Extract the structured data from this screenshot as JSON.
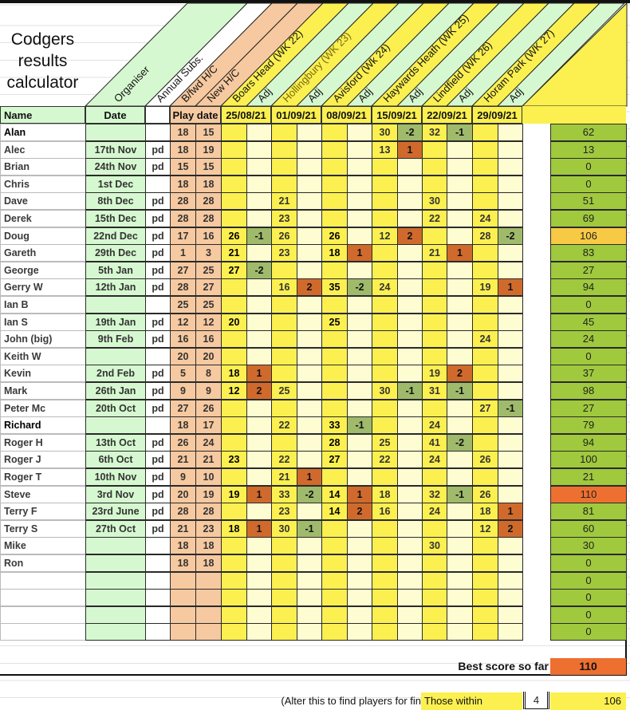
{
  "title": "Codgers results calculator",
  "diagonal_headers": {
    "organiser": "Organiser",
    "annual_subs": "Annual Subs.",
    "bfwd_hc": "B/fwd H/C",
    "new_hc": "New H/C",
    "venues": [
      "Boars Head (WK 22)",
      "Hollingbury (WK 23)",
      "Avisford (Wk 24)",
      "Haywards Heath (WK 25)",
      "Lindfield (WK 26)",
      "Horam Park (WK 27)"
    ],
    "adj": "Adj"
  },
  "columns": {
    "name": "Name",
    "date": "Date",
    "play_date": "Play date",
    "dates": [
      "25/08/21",
      "01/09/21",
      "08/09/21",
      "15/09/21",
      "22/09/21",
      "29/09/21"
    ]
  },
  "colors": {
    "score": "#fbf050",
    "adj_positive": "#d06a2c",
    "adj_negative": "#9fba6b",
    "total": "#a0c93e",
    "best": "#ee7030",
    "near_best": "#f8c945"
  },
  "rows": [
    {
      "name": "Alan",
      "date": "",
      "paid": "",
      "bfwd": "18",
      "new_hc": "15",
      "scores": [
        "",
        "",
        "",
        "",
        "",
        "",
        "30",
        "-2",
        "32",
        "-1",
        "",
        ""
      ],
      "total": "62",
      "strong": true
    },
    {
      "name": "Alec",
      "date": "17th Nov",
      "paid": "pd",
      "bfwd": "18",
      "new_hc": "19",
      "scores": [
        "",
        "",
        "",
        "",
        "",
        "",
        "13",
        "1",
        "",
        "",
        "",
        ""
      ],
      "total": "13"
    },
    {
      "name": "Brian",
      "date": "24th Nov",
      "paid": "pd",
      "bfwd": "15",
      "new_hc": "15",
      "scores": [
        "",
        "",
        "",
        "",
        "",
        "",
        "",
        "",
        "",
        "",
        "",
        ""
      ],
      "total": "0"
    },
    {
      "name": "Chris",
      "date": "1st Dec",
      "paid": "",
      "bfwd": "18",
      "new_hc": "18",
      "scores": [
        "",
        "",
        "",
        "",
        "",
        "",
        "",
        "",
        "",
        "",
        "",
        ""
      ],
      "total": "0"
    },
    {
      "name": "Dave",
      "date": "8th Dec",
      "paid": "pd",
      "bfwd": "28",
      "new_hc": "28",
      "scores": [
        "",
        "",
        "21",
        "",
        "",
        "",
        "",
        "",
        "30",
        "",
        "",
        ""
      ],
      "total": "51"
    },
    {
      "name": "Derek",
      "date": "15th Dec",
      "paid": "pd",
      "bfwd": "28",
      "new_hc": "28",
      "scores": [
        "",
        "",
        "23",
        "",
        "",
        "",
        "",
        "",
        "22",
        "",
        "24",
        ""
      ],
      "total": "69"
    },
    {
      "name": "Doug",
      "date": "22nd Dec",
      "paid": "pd",
      "bfwd": "17",
      "new_hc": "16",
      "scores": [
        "26",
        "-1",
        "26",
        "",
        "26",
        "",
        "12",
        "2",
        "",
        "",
        "28",
        "-2"
      ],
      "total": "106"
    },
    {
      "name": "Gareth",
      "date": "29th Dec",
      "paid": "pd",
      "bfwd": "1",
      "new_hc": "3",
      "scores": [
        "21",
        "",
        "23",
        "",
        "18",
        "1",
        "",
        "",
        "21",
        "1",
        "",
        ""
      ],
      "total": "83"
    },
    {
      "name": "George",
      "date": "5th Jan",
      "paid": "pd",
      "bfwd": "27",
      "new_hc": "25",
      "scores": [
        "27",
        "-2",
        "",
        "",
        "",
        "",
        "",
        "",
        "",
        "",
        "",
        ""
      ],
      "total": "27"
    },
    {
      "name": "Gerry W",
      "date": "12th Jan",
      "paid": "pd",
      "bfwd": "28",
      "new_hc": "27",
      "scores": [
        "",
        "",
        "16",
        "2",
        "35",
        "-2",
        "24",
        "",
        "",
        "",
        "19",
        "1"
      ],
      "total": "94"
    },
    {
      "name": "Ian B",
      "date": "",
      "paid": "",
      "bfwd": "25",
      "new_hc": "25",
      "scores": [
        "",
        "",
        "",
        "",
        "",
        "",
        "",
        "",
        "",
        "",
        "",
        ""
      ],
      "total": "0"
    },
    {
      "name": "Ian S",
      "date": "19th Jan",
      "paid": "pd",
      "bfwd": "12",
      "new_hc": "12",
      "scores": [
        "20",
        "",
        "",
        "",
        "25",
        "",
        "",
        "",
        "",
        "",
        "",
        ""
      ],
      "total": "45"
    },
    {
      "name": "John (big)",
      "date": "9th Feb",
      "paid": "pd",
      "bfwd": "16",
      "new_hc": "16",
      "scores": [
        "",
        "",
        "",
        "",
        "",
        "",
        "",
        "",
        "",
        "",
        "24",
        ""
      ],
      "total": "24"
    },
    {
      "name": "Keith W",
      "date": "",
      "paid": "",
      "bfwd": "20",
      "new_hc": "20",
      "scores": [
        "",
        "",
        "",
        "",
        "",
        "",
        "",
        "",
        "",
        "",
        "",
        ""
      ],
      "total": "0"
    },
    {
      "name": "Kevin",
      "date": "2nd Feb",
      "paid": "pd",
      "bfwd": "5",
      "new_hc": "8",
      "scores": [
        "18",
        "1",
        "",
        "",
        "",
        "",
        "",
        "",
        "19",
        "2",
        "",
        ""
      ],
      "total": "37"
    },
    {
      "name": "Mark",
      "date": "26th Jan",
      "paid": "pd",
      "bfwd": "9",
      "new_hc": "9",
      "scores": [
        "12",
        "2",
        "25",
        "",
        "",
        "",
        "30",
        "-1",
        "31",
        "-1",
        "",
        ""
      ],
      "total": "98"
    },
    {
      "name": "Peter Mc",
      "date": "20th Oct",
      "paid": "pd",
      "bfwd": "27",
      "new_hc": "26",
      "scores": [
        "",
        "",
        "",
        "",
        "",
        "",
        "",
        "",
        "",
        "",
        "27",
        "-1"
      ],
      "total": "27"
    },
    {
      "name": "Richard",
      "date": "",
      "paid": "",
      "bfwd": "18",
      "new_hc": "17",
      "scores": [
        "",
        "",
        "22",
        "",
        "33",
        "-1",
        "",
        "",
        "24",
        "",
        "",
        ""
      ],
      "total": "79",
      "strong": true
    },
    {
      "name": "Roger H",
      "date": "13th Oct",
      "paid": "pd",
      "bfwd": "26",
      "new_hc": "24",
      "scores": [
        "",
        "",
        "",
        "",
        "28",
        "",
        "25",
        "",
        "41",
        "-2",
        "",
        ""
      ],
      "total": "94"
    },
    {
      "name": "Roger J",
      "date": "6th Oct",
      "paid": "pd",
      "bfwd": "21",
      "new_hc": "21",
      "scores": [
        "23",
        "",
        "22",
        "",
        "27",
        "",
        "22",
        "",
        "24",
        "",
        "26",
        ""
      ],
      "total": "100"
    },
    {
      "name": "Roger T",
      "date": "10th Nov",
      "paid": "pd",
      "bfwd": "9",
      "new_hc": "10",
      "scores": [
        "",
        "",
        "21",
        "1",
        "",
        "",
        "",
        "",
        "",
        "",
        "",
        ""
      ],
      "total": "21"
    },
    {
      "name": "Steve",
      "date": "3rd Nov",
      "paid": "pd",
      "bfwd": "20",
      "new_hc": "19",
      "scores": [
        "19",
        "1",
        "33",
        "-2",
        "14",
        "1",
        "18",
        "",
        "32",
        "-1",
        "26",
        ""
      ],
      "total": "110"
    },
    {
      "name": "Terry F",
      "date": "23rd June",
      "paid": "pd",
      "bfwd": "28",
      "new_hc": "28",
      "scores": [
        "",
        "",
        "23",
        "",
        "14",
        "2",
        "16",
        "",
        "24",
        "",
        "18",
        "1"
      ],
      "total": "81"
    },
    {
      "name": "Terry S",
      "date": "27th Oct",
      "paid": "pd",
      "bfwd": "21",
      "new_hc": "23",
      "scores": [
        "18",
        "1",
        "30",
        "-1",
        "",
        "",
        "",
        "",
        "",
        "",
        "12",
        "2"
      ],
      "total": "60"
    },
    {
      "name": "Mike",
      "date": "",
      "paid": "",
      "bfwd": "18",
      "new_hc": "18",
      "scores": [
        "",
        "",
        "",
        "",
        "",
        "",
        "",
        "",
        "30",
        "",
        "",
        ""
      ],
      "total": "30"
    },
    {
      "name": "Ron",
      "date": "",
      "paid": "",
      "bfwd": "18",
      "new_hc": "18",
      "scores": [
        "",
        "",
        "",
        "",
        "",
        "",
        "",
        "",
        "",
        "",
        "",
        ""
      ],
      "total": "0"
    },
    {
      "name": "",
      "date": "",
      "paid": "",
      "bfwd": "",
      "new_hc": "",
      "scores": [
        "",
        "",
        "",
        "",
        "",
        "",
        "",
        "",
        "",
        "",
        "",
        ""
      ],
      "total": "0"
    },
    {
      "name": "",
      "date": "",
      "paid": "",
      "bfwd": "",
      "new_hc": "",
      "scores": [
        "",
        "",
        "",
        "",
        "",
        "",
        "",
        "",
        "",
        "",
        "",
        ""
      ],
      "total": "0"
    },
    {
      "name": "",
      "date": "",
      "paid": "",
      "bfwd": "",
      "new_hc": "",
      "scores": [
        "",
        "",
        "",
        "",
        "",
        "",
        "",
        "",
        "",
        "",
        "",
        ""
      ],
      "total": "0"
    },
    {
      "name": "",
      "date": "",
      "paid": "",
      "bfwd": "",
      "new_hc": "",
      "scores": [
        "",
        "",
        "",
        "",
        "",
        "",
        "",
        "",
        "",
        "",
        "",
        ""
      ],
      "total": "0"
    }
  ],
  "summary": {
    "best_label": "Best score so far",
    "best_value": "110",
    "alter_note": "(Alter this to find players for fin",
    "within_label": "Those within",
    "within_value": "4",
    "within_total": "106"
  }
}
